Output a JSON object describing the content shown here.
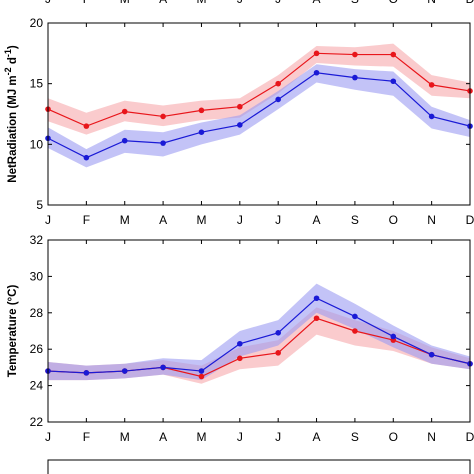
{
  "colors": {
    "red_line": "#e8161b",
    "red_band": "#f7a8ab",
    "blue_line": "#1a1ad6",
    "blue_band": "#9b9bf2",
    "axis": "#000000"
  },
  "top_axis_labels": [
    "J",
    "F",
    "M",
    "A",
    "M",
    "J",
    "J",
    "A",
    "S",
    "O",
    "N",
    "D"
  ],
  "chart_data": [
    {
      "type": "line",
      "ylabel_base": "NetRadiation (MJ m",
      "ylabel_exp1": "-2",
      "ylabel_mid": " d",
      "ylabel_exp2": "-1",
      "ylabel_end": ")",
      "categories": [
        "J",
        "F",
        "M",
        "A",
        "M",
        "J",
        "J",
        "A",
        "S",
        "O",
        "N",
        "D"
      ],
      "ylim": [
        5,
        20
      ],
      "yticks": [
        5,
        10,
        15,
        20
      ],
      "grid": false,
      "series": [
        {
          "color_key": "red",
          "values": [
            12.9,
            11.5,
            12.7,
            12.3,
            12.8,
            13.1,
            15.0,
            17.5,
            17.4,
            17.4,
            14.9,
            14.4
          ],
          "lower": [
            11.9,
            10.8,
            11.9,
            11.5,
            12.0,
            12.2,
            14.2,
            16.7,
            16.5,
            16.4,
            14.0,
            13.8
          ],
          "upper": [
            13.8,
            12.6,
            13.6,
            13.2,
            13.6,
            13.8,
            15.7,
            18.1,
            18.0,
            18.3,
            15.7,
            15.1
          ]
        },
        {
          "color_key": "blue",
          "values": [
            10.5,
            8.9,
            10.3,
            10.1,
            11.0,
            11.6,
            13.7,
            15.9,
            15.5,
            15.2,
            12.3,
            11.5
          ],
          "lower": [
            9.7,
            8.1,
            9.3,
            9.0,
            10.0,
            10.8,
            12.9,
            15.1,
            14.5,
            14.0,
            11.3,
            10.6
          ],
          "upper": [
            11.4,
            9.6,
            11.2,
            11.0,
            11.8,
            12.4,
            14.4,
            16.6,
            16.2,
            16.0,
            13.1,
            12.0
          ]
        }
      ]
    },
    {
      "type": "line",
      "ylabel": "Temperature (°C)",
      "categories": [
        "J",
        "F",
        "M",
        "A",
        "M",
        "J",
        "J",
        "A",
        "S",
        "O",
        "N",
        "D"
      ],
      "ylim": [
        22,
        32
      ],
      "yticks": [
        22,
        24,
        26,
        28,
        30,
        32
      ],
      "grid": false,
      "series": [
        {
          "color_key": "red",
          "values": [
            24.8,
            24.7,
            24.8,
            25.0,
            24.5,
            25.5,
            25.8,
            27.7,
            27.0,
            26.5,
            25.7,
            25.2
          ],
          "lower": [
            24.3,
            24.3,
            24.4,
            24.6,
            24.1,
            24.9,
            25.1,
            26.8,
            26.2,
            25.9,
            25.2,
            24.9
          ],
          "upper": [
            25.3,
            25.1,
            25.2,
            25.4,
            25.1,
            26.1,
            26.5,
            28.3,
            27.6,
            27.0,
            26.1,
            25.5
          ]
        },
        {
          "color_key": "blue",
          "values": [
            24.8,
            24.7,
            24.8,
            25.0,
            24.8,
            26.3,
            26.9,
            28.8,
            27.8,
            26.7,
            25.7,
            25.2
          ],
          "lower": [
            24.3,
            24.3,
            24.4,
            24.6,
            24.3,
            25.6,
            26.2,
            28.0,
            27.1,
            26.1,
            25.2,
            24.9
          ],
          "upper": [
            25.3,
            25.1,
            25.2,
            25.5,
            25.4,
            27.0,
            27.6,
            29.6,
            28.5,
            27.3,
            26.2,
            25.6
          ]
        }
      ]
    }
  ]
}
